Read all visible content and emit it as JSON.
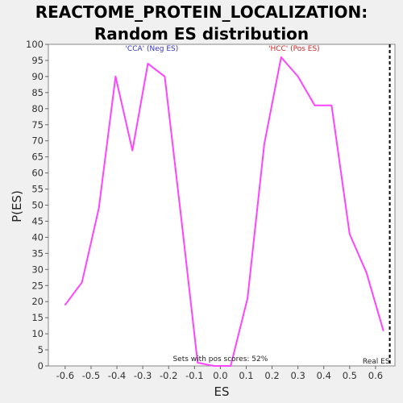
{
  "chart_data": {
    "type": "line",
    "title": "REACTOME_PROTEIN_LOCALIZATION: Random ES distribution",
    "xlabel": "ES",
    "ylabel": "P(ES)",
    "xlim": [
      -0.665,
      0.675
    ],
    "ylim": [
      0,
      100
    ],
    "x_ticks": [
      -0.6,
      -0.5,
      -0.4,
      -0.3,
      -0.2,
      -0.1,
      0.0,
      0.1,
      0.2,
      0.3,
      0.4,
      0.5,
      0.6
    ],
    "x_tick_labels": [
      "-0.6",
      "-0.5",
      "-0.4",
      "-0.3",
      "-0.2",
      "-0.1",
      "0.0",
      "0.1",
      "0.2",
      "0.3",
      "0.4",
      "0.5",
      "0.6"
    ],
    "y_ticks": [
      0,
      5,
      10,
      15,
      20,
      25,
      30,
      35,
      40,
      45,
      50,
      55,
      60,
      65,
      70,
      75,
      80,
      85,
      90,
      95,
      100
    ],
    "series": [
      {
        "color": "#ff44ff",
        "x": [
          -0.6,
          -0.535,
          -0.47,
          -0.405,
          -0.34,
          -0.28,
          -0.215,
          -0.15,
          -0.088,
          -0.025,
          0.04,
          0.105,
          0.17,
          0.235,
          0.3,
          0.365,
          0.43,
          0.5,
          0.565,
          0.63
        ],
        "y": [
          19,
          26,
          49,
          90,
          67,
          94,
          90,
          45,
          1,
          0,
          0,
          21,
          69,
          96,
          90,
          81,
          81,
          41,
          29,
          11
        ]
      }
    ],
    "real_es": {
      "x": 0.655,
      "label": "Real ES",
      "color": "#000000"
    },
    "annotations": [
      {
        "text": "'CCA' (Neg ES)",
        "x": -0.265,
        "y": 98,
        "color": "#3333cc"
      },
      {
        "text": "'HCC' (Pos ES)",
        "x": 0.285,
        "y": 98,
        "color": "#cc2222"
      },
      {
        "text": "Sets with pos scores: 52%",
        "x": 0.0,
        "y": 1.5,
        "color": "#222222"
      }
    ],
    "grid": false
  }
}
